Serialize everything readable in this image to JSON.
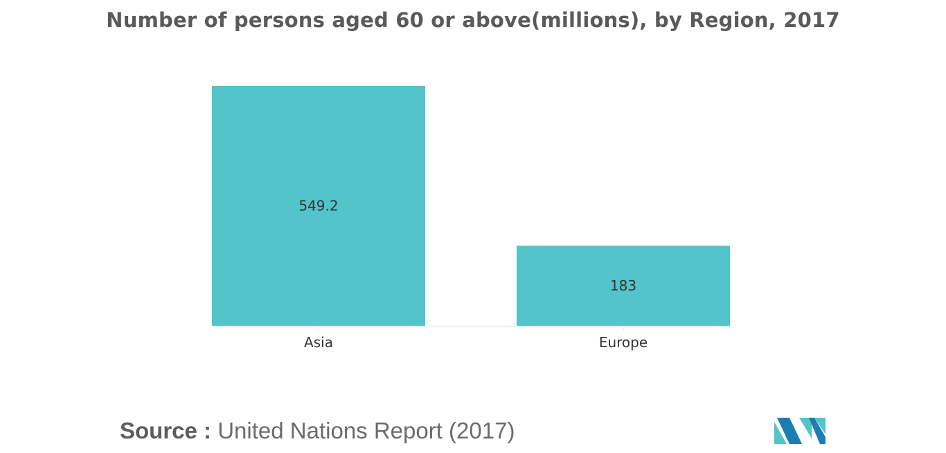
{
  "colors": {
    "bar": "#52c4ca",
    "title": "#5a5a5a",
    "axis": "#d9d9d9",
    "label": "#333333",
    "logo_dark": "#1a7fb0",
    "logo_light": "#52c4ca"
  },
  "chart_data": {
    "type": "bar",
    "title": "Number of persons aged 60 or above(millions), by Region, 2017",
    "categories": [
      "Asia",
      "Europe"
    ],
    "values": [
      549.2,
      183
    ],
    "data_labels": [
      "549.2",
      "183"
    ],
    "xlabel": "",
    "ylabel": "",
    "ylim": [
      0,
      549.2
    ],
    "grid": false,
    "legend": "none"
  },
  "source": {
    "label": "Source :",
    "text": "United Nations Report (2017)"
  },
  "logo": {
    "icon": "mordor-intelligence-logo"
  }
}
